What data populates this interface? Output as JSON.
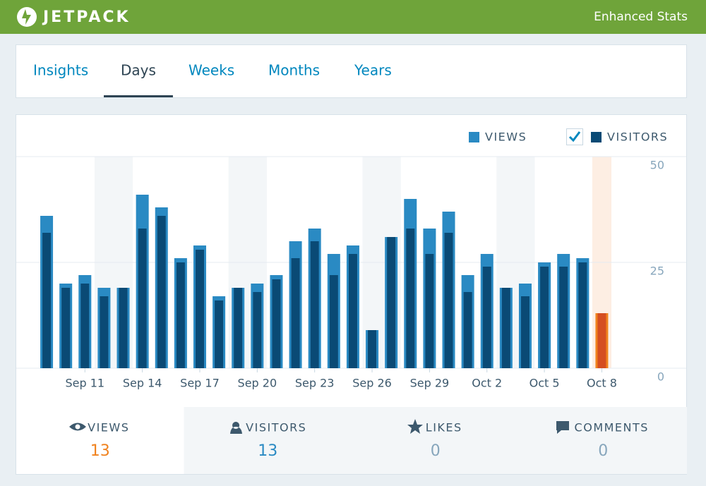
{
  "header": {
    "brand": "JETPACK",
    "title": "Enhanced Stats"
  },
  "tabs": {
    "items": [
      "Insights",
      "Days",
      "Weeks",
      "Months",
      "Years"
    ],
    "active": 1
  },
  "chart_data": {
    "type": "bar",
    "categories": [
      null,
      null,
      "Sep 11",
      null,
      null,
      "Sep 14",
      null,
      null,
      "Sep 17",
      null,
      null,
      "Sep 20",
      null,
      null,
      "Sep 23",
      null,
      null,
      "Sep 26",
      null,
      null,
      "Sep 29",
      null,
      null,
      "Oct 2",
      null,
      null,
      "Oct 5",
      null,
      null,
      "Oct 8"
    ],
    "series": [
      {
        "name": "VIEWS",
        "color": "#2a8ac3",
        "highlight_color": "#f0821e",
        "values": [
          36,
          20,
          22,
          19,
          19,
          41,
          38,
          26,
          29,
          17,
          19,
          20,
          22,
          30,
          33,
          27,
          29,
          9,
          31,
          40,
          33,
          37,
          22,
          27,
          19,
          20,
          25,
          27,
          26,
          13
        ]
      },
      {
        "name": "VISITORS",
        "color": "#0a4a75",
        "highlight_color": "#d54e21",
        "values": [
          32,
          19,
          20,
          17,
          19,
          33,
          36,
          25,
          28,
          16,
          19,
          18,
          21,
          26,
          30,
          22,
          27,
          9,
          31,
          33,
          27,
          32,
          18,
          24,
          19,
          17,
          24,
          24,
          25,
          13
        ]
      }
    ],
    "ylim": [
      0,
      50
    ],
    "yticks": [
      0,
      25,
      50
    ],
    "grid": true,
    "selected_index": 29
  },
  "summary": [
    {
      "label": "VIEWS",
      "value": "13",
      "color": "#f0821e"
    },
    {
      "label": "VISITORS",
      "value": "13",
      "color": "#2a8ac3"
    },
    {
      "label": "LIKES",
      "value": "0",
      "color": "#87a6bc"
    },
    {
      "label": "COMMENTS",
      "value": "0",
      "color": "#87a6bc"
    }
  ]
}
